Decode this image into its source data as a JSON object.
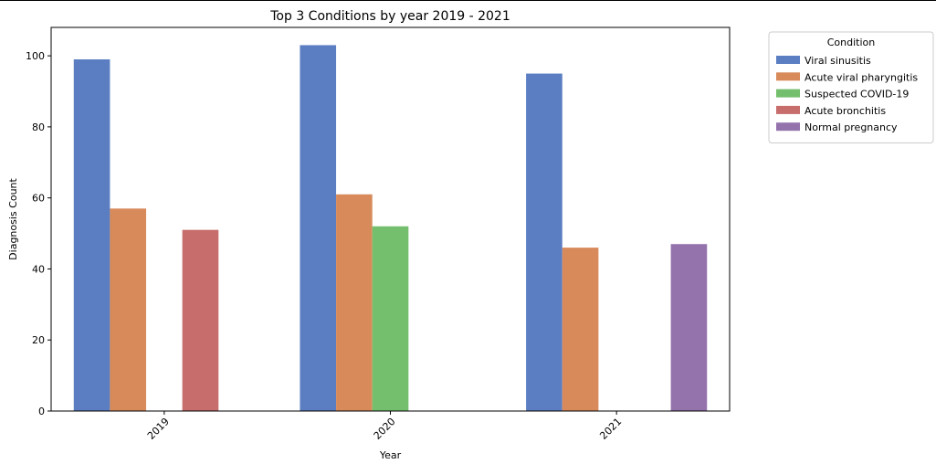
{
  "chart_data": {
    "type": "bar",
    "title": "Top 3 Conditions by year 2019 - 2021",
    "xlabel": "Year",
    "ylabel": "Diagnosis Count",
    "categories": [
      "2019",
      "2020",
      "2021"
    ],
    "ylim": [
      0,
      108
    ],
    "yticks": [
      0,
      20,
      40,
      60,
      80,
      100
    ],
    "grid": false,
    "legend": {
      "title": "Condition",
      "placement": "outside-top-right"
    },
    "series": [
      {
        "name": "Viral sinusitis",
        "color": "#5b7ec2",
        "values": [
          99,
          103,
          95
        ]
      },
      {
        "name": "Acute viral pharyngitis",
        "color": "#d88a5a",
        "values": [
          57,
          61,
          46
        ]
      },
      {
        "name": "Suspected COVID-19",
        "color": "#74bf6d",
        "values": [
          null,
          52,
          null
        ]
      },
      {
        "name": "Acute bronchitis",
        "color": "#c76d6b",
        "values": [
          51,
          null,
          null
        ]
      },
      {
        "name": "Normal pregnancy",
        "color": "#9473ad",
        "values": [
          null,
          null,
          47
        ]
      }
    ]
  }
}
